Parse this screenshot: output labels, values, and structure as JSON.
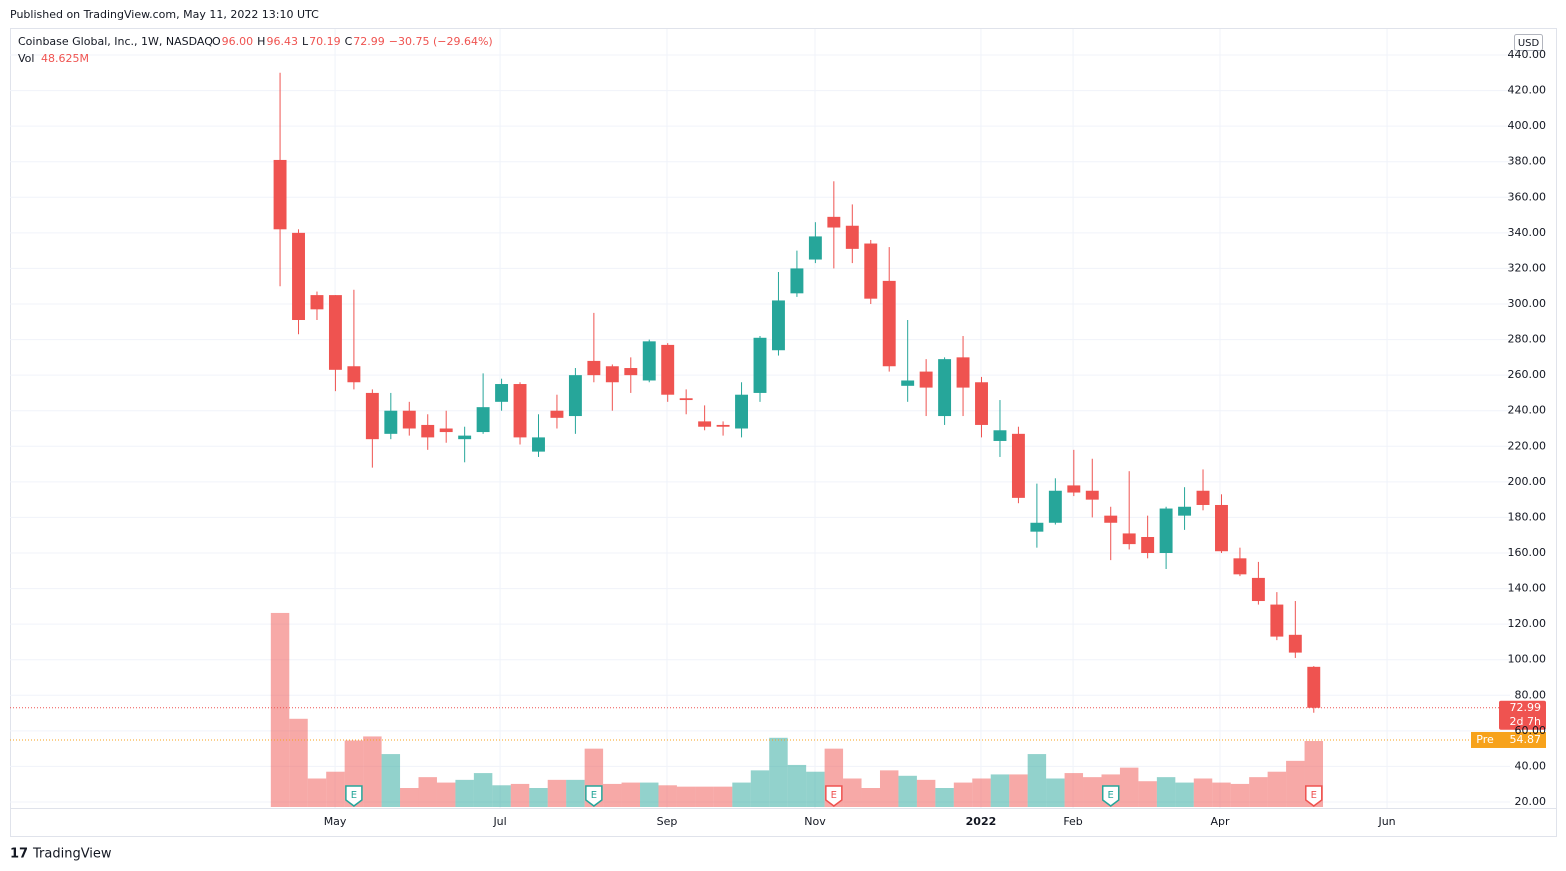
{
  "published": "Published on TradingView.com, May 11, 2022 13:10 UTC",
  "brand": "TradingView",
  "currency": "USD",
  "header": {
    "symbol": "Coinbase Global, Inc., 1W, NASDAQ",
    "o_label": "O",
    "o": "96.00",
    "h_label": "H",
    "h": "96.43",
    "l_label": "L",
    "l": "70.19",
    "c_label": "C",
    "c": "72.99",
    "change": "−30.75 (−29.64%)",
    "vol_label": "Vol",
    "vol": "48.625M"
  },
  "chart_data": {
    "type": "candlestick",
    "categories": [
      null,
      null,
      null,
      null,
      null,
      null,
      null,
      null,
      null,
      null,
      null,
      null,
      null,
      null,
      null,
      null,
      null,
      null,
      null,
      null,
      null,
      null,
      null,
      null,
      null,
      null,
      null,
      null,
      null,
      null,
      null,
      null,
      null,
      null,
      null,
      null,
      null,
      null,
      null,
      null,
      null,
      null,
      null,
      null,
      null,
      null,
      null,
      null,
      null,
      null,
      null,
      null,
      null,
      null,
      null,
      null,
      null
    ],
    "open": [
      381,
      340,
      305,
      305,
      265,
      250,
      227,
      240,
      232,
      230,
      224,
      228,
      245,
      255,
      217,
      240,
      237,
      268,
      265,
      264,
      257,
      277,
      247,
      234,
      232,
      230,
      250,
      274,
      306,
      325,
      349,
      344,
      334,
      313,
      254,
      262,
      237,
      270,
      256,
      223,
      227,
      172,
      177,
      198,
      195,
      181,
      171,
      169,
      160,
      181,
      195,
      187,
      157,
      146,
      131,
      114,
      96
    ],
    "high": [
      430,
      342,
      307,
      305,
      308,
      252,
      250,
      245,
      238,
      240,
      231,
      261,
      258,
      256,
      238,
      249,
      264,
      295,
      266,
      270,
      280,
      278,
      252,
      243,
      234,
      256,
      282,
      318,
      330,
      346,
      369,
      356,
      336,
      332,
      291,
      269,
      270,
      282,
      259,
      246,
      231,
      199,
      202,
      218,
      213,
      186,
      206,
      181,
      186,
      197,
      207,
      193,
      163,
      155,
      138,
      133,
      96.43
    ],
    "low": [
      310,
      283,
      291,
      251,
      252,
      208,
      224,
      226,
      218,
      222,
      211,
      227,
      240,
      221,
      214,
      230,
      227,
      256,
      240,
      250,
      256,
      245,
      238,
      229,
      226,
      225,
      245,
      271,
      304,
      323,
      320,
      323,
      300,
      262,
      245,
      237,
      232,
      237,
      225,
      214,
      188,
      163,
      176,
      192,
      180,
      156,
      162,
      157,
      151,
      173,
      184,
      160,
      147,
      131,
      111,
      101,
      70.19
    ],
    "close": [
      342,
      291,
      297,
      263,
      256,
      224,
      240,
      230,
      225,
      228,
      226,
      242,
      255,
      225,
      225,
      236,
      260,
      260,
      256,
      260,
      279,
      249,
      246,
      231,
      231,
      249,
      281,
      302,
      320,
      338,
      343,
      331,
      303,
      265,
      257,
      253,
      269,
      253,
      232,
      229,
      191,
      177,
      195,
      194,
      190,
      177,
      165,
      160,
      185,
      186,
      187,
      161,
      148,
      133,
      113,
      104,
      72.99
    ],
    "volume": [
      143,
      65,
      21,
      26,
      49,
      52,
      39,
      14,
      22,
      18,
      20,
      25,
      16,
      17,
      14,
      20,
      20,
      43,
      17,
      18,
      18,
      16,
      15,
      15,
      15,
      18,
      27,
      51,
      31,
      26,
      43,
      21,
      14,
      27,
      23,
      20,
      14,
      18,
      21,
      24,
      24,
      39,
      21,
      25,
      22,
      24,
      29,
      19,
      22,
      18,
      21,
      18,
      17,
      22,
      26,
      34,
      48.625
    ],
    "up_color": "#26a69a",
    "down_color": "#ef5350",
    "ylim": [
      20,
      440
    ],
    "yticks": [
      {
        "value": 20,
        "label": "20.00"
      },
      {
        "value": 40,
        "label": "40.00"
      },
      {
        "value": 60,
        "label": "60.00"
      },
      {
        "value": 80,
        "label": "80.00"
      },
      {
        "value": 100,
        "label": "100.00"
      },
      {
        "value": 120,
        "label": "120.00"
      },
      {
        "value": 140,
        "label": "140.00"
      },
      {
        "value": 160,
        "label": "160.00"
      },
      {
        "value": 180,
        "label": "180.00"
      },
      {
        "value": 200,
        "label": "200.00"
      },
      {
        "value": 220,
        "label": "220.00"
      },
      {
        "value": 240,
        "label": "240.00"
      },
      {
        "value": 260,
        "label": "260.00"
      },
      {
        "value": 280,
        "label": "280.00"
      },
      {
        "value": 300,
        "label": "300.00"
      },
      {
        "value": 320,
        "label": "320.00"
      },
      {
        "value": 340,
        "label": "340.00"
      },
      {
        "value": 360,
        "label": "360.00"
      },
      {
        "value": 380,
        "label": "380.00"
      },
      {
        "value": 400,
        "label": "400.00"
      },
      {
        "value": 420,
        "label": "420.00"
      },
      {
        "value": 440,
        "label": "440.00"
      }
    ],
    "xlim": [
      -14.63,
      66.63
    ],
    "xticks": [
      {
        "value": 2.98,
        "label": "May"
      },
      {
        "value": 11.92,
        "label": "Jul"
      },
      {
        "value": 20.96,
        "label": "Sep"
      },
      {
        "value": 28.98,
        "label": "Nov"
      },
      {
        "value": 37.97,
        "label": "2022"
      },
      {
        "value": 42.96,
        "label": "Feb"
      },
      {
        "value": 50.92,
        "label": "Apr"
      },
      {
        "value": 59.97,
        "label": "Jun"
      }
    ],
    "grid": true,
    "last_price": 72.99,
    "countdown": "2d 7h",
    "premarket": {
      "label": "Pre",
      "value": 54.87,
      "color": "#f7a21b"
    },
    "earnings_label": "E"
  }
}
